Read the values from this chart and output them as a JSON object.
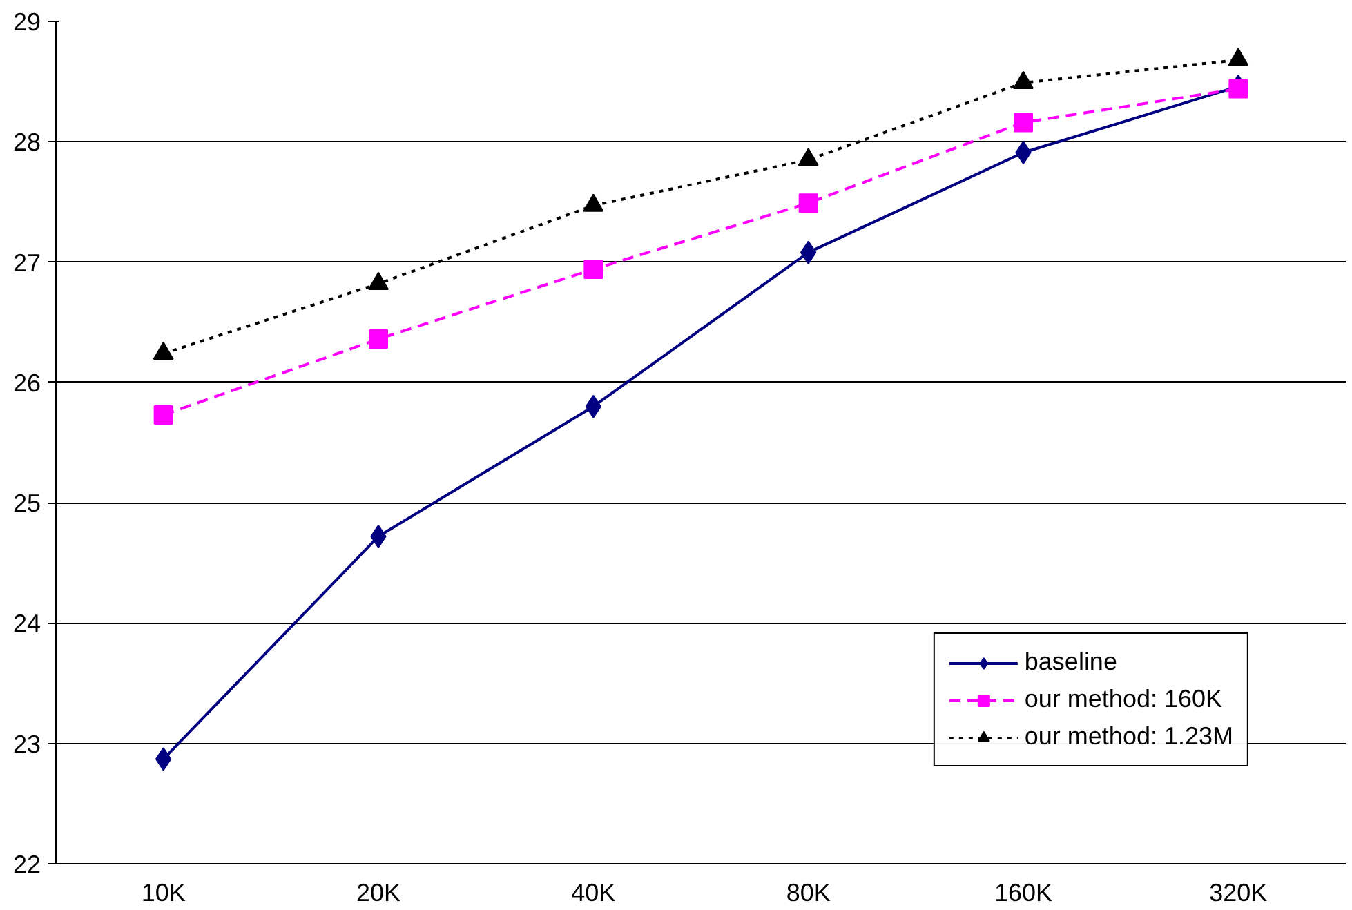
{
  "chart_data": {
    "type": "line",
    "categories": [
      "10K",
      "20K",
      "40K",
      "80K",
      "160K",
      "320K"
    ],
    "ylim": [
      22,
      29
    ],
    "yticks": [
      22,
      23,
      24,
      25,
      26,
      27,
      28,
      29
    ],
    "grid": "y",
    "legend": "bottom right",
    "series": [
      {
        "name": "baseline",
        "color": "#000080",
        "marker": "diamond",
        "line_style": "solid",
        "values": [
          22.87,
          24.72,
          25.8,
          27.08,
          27.91,
          28.46
        ]
      },
      {
        "name": "our method: 160K",
        "color": "#ff00ff",
        "marker": "square",
        "line_style": "dashed",
        "values": [
          25.73,
          26.36,
          26.94,
          27.49,
          28.16,
          28.44
        ]
      },
      {
        "name": "our method: 1.23M",
        "color": "#000000",
        "marker": "triangle",
        "line_style": "dotted",
        "values": [
          26.24,
          26.82,
          27.47,
          27.85,
          28.49,
          28.68
        ]
      }
    ]
  }
}
